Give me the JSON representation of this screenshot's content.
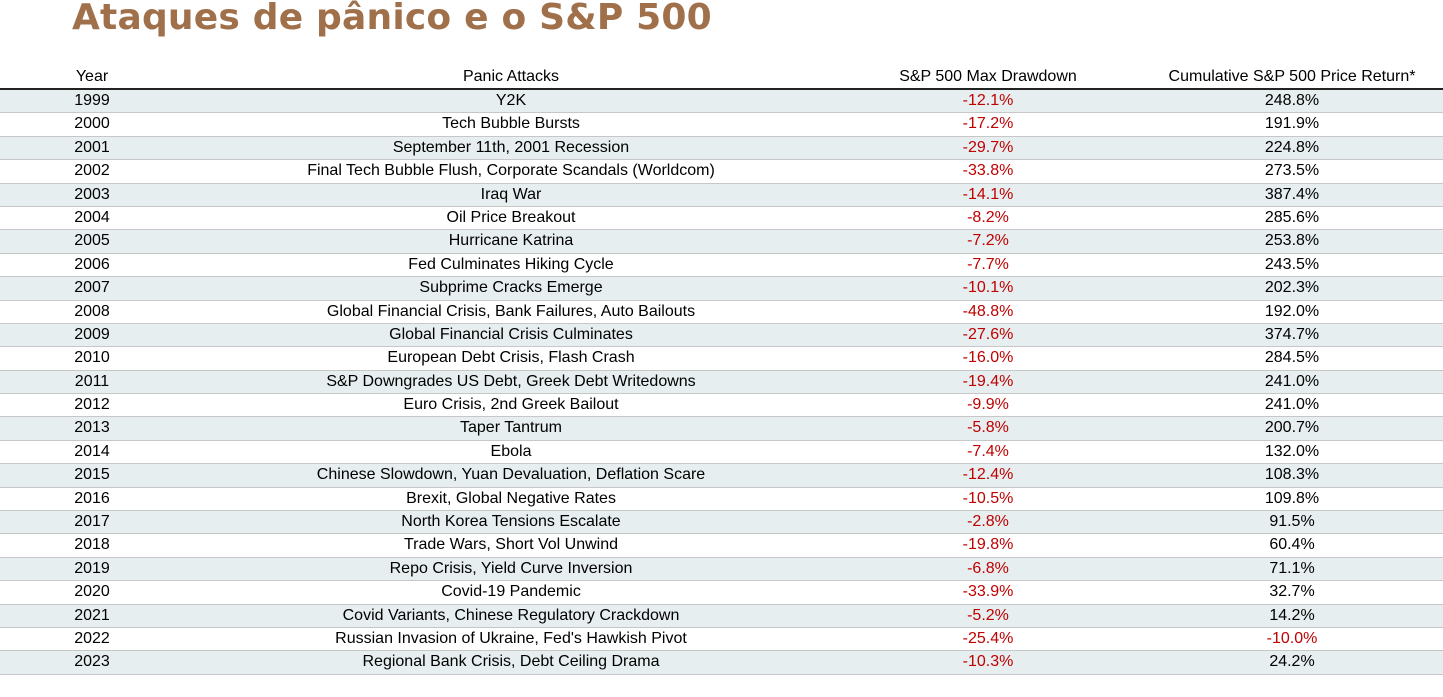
{
  "title": "Ataques de pânico e o S&P 500",
  "headers": {
    "year": "Year",
    "event": "Panic Attacks",
    "drawdown": "S&P 500 Max Drawdown",
    "return": "Cumulative S&P 500 Price Return*"
  },
  "colors": {
    "title": "#a0704a",
    "negative": "#c00000",
    "alt_row": "#e6eef0"
  },
  "chart_data": {
    "type": "table",
    "columns": [
      "Year",
      "Panic Attacks",
      "S&P 500 Max Drawdown",
      "Cumulative S&P 500 Price Return*"
    ],
    "rows": [
      {
        "year": "1999",
        "event": "Y2K",
        "drawdown": "-12.1%",
        "return": "248.8%"
      },
      {
        "year": "2000",
        "event": "Tech Bubble Bursts",
        "drawdown": "-17.2%",
        "return": "191.9%"
      },
      {
        "year": "2001",
        "event": "September 11th, 2001 Recession",
        "drawdown": "-29.7%",
        "return": "224.8%"
      },
      {
        "year": "2002",
        "event": "Final Tech Bubble Flush, Corporate Scandals (Worldcom)",
        "drawdown": "-33.8%",
        "return": "273.5%"
      },
      {
        "year": "2003",
        "event": "Iraq War",
        "drawdown": "-14.1%",
        "return": "387.4%"
      },
      {
        "year": "2004",
        "event": "Oil Price Breakout",
        "drawdown": "-8.2%",
        "return": "285.6%"
      },
      {
        "year": "2005",
        "event": "Hurricane Katrina",
        "drawdown": "-7.2%",
        "return": "253.8%"
      },
      {
        "year": "2006",
        "event": "Fed Culminates Hiking Cycle",
        "drawdown": "-7.7%",
        "return": "243.5%"
      },
      {
        "year": "2007",
        "event": "Subprime Cracks Emerge",
        "drawdown": "-10.1%",
        "return": "202.3%"
      },
      {
        "year": "2008",
        "event": "Global Financial Crisis, Bank Failures, Auto Bailouts",
        "drawdown": "-48.8%",
        "return": "192.0%"
      },
      {
        "year": "2009",
        "event": "Global Financial Crisis Culminates",
        "drawdown": "-27.6%",
        "return": "374.7%"
      },
      {
        "year": "2010",
        "event": "European Debt Crisis, Flash Crash",
        "drawdown": "-16.0%",
        "return": "284.5%"
      },
      {
        "year": "2011",
        "event": "S&P Downgrades US Debt, Greek Debt Writedowns",
        "drawdown": "-19.4%",
        "return": "241.0%"
      },
      {
        "year": "2012",
        "event": "Euro Crisis, 2nd Greek Bailout",
        "drawdown": "-9.9%",
        "return": "241.0%"
      },
      {
        "year": "2013",
        "event": "Taper Tantrum",
        "drawdown": "-5.8%",
        "return": "200.7%"
      },
      {
        "year": "2014",
        "event": "Ebola",
        "drawdown": "-7.4%",
        "return": "132.0%"
      },
      {
        "year": "2015",
        "event": "Chinese Slowdown, Yuan Devaluation, Deflation Scare",
        "drawdown": "-12.4%",
        "return": "108.3%"
      },
      {
        "year": "2016",
        "event": "Brexit, Global Negative Rates",
        "drawdown": "-10.5%",
        "return": "109.8%"
      },
      {
        "year": "2017",
        "event": "North Korea Tensions Escalate",
        "drawdown": "-2.8%",
        "return": "91.5%"
      },
      {
        "year": "2018",
        "event": "Trade Wars, Short Vol Unwind",
        "drawdown": "-19.8%",
        "return": "60.4%"
      },
      {
        "year": "2019",
        "event": "Repo Crisis, Yield Curve Inversion",
        "drawdown": "-6.8%",
        "return": "71.1%"
      },
      {
        "year": "2020",
        "event": "Covid-19 Pandemic",
        "drawdown": "-33.9%",
        "return": "32.7%"
      },
      {
        "year": "2021",
        "event": "Covid Variants, Chinese Regulatory Crackdown",
        "drawdown": "-5.2%",
        "return": "14.2%"
      },
      {
        "year": "2022",
        "event": "Russian Invasion of Ukraine, Fed's Hawkish Pivot",
        "drawdown": "-25.4%",
        "return": "-10.0%"
      },
      {
        "year": "2023",
        "event": "Regional Bank Crisis, Debt Ceiling Drama",
        "drawdown": "-10.3%",
        "return": "24.2%"
      }
    ]
  }
}
